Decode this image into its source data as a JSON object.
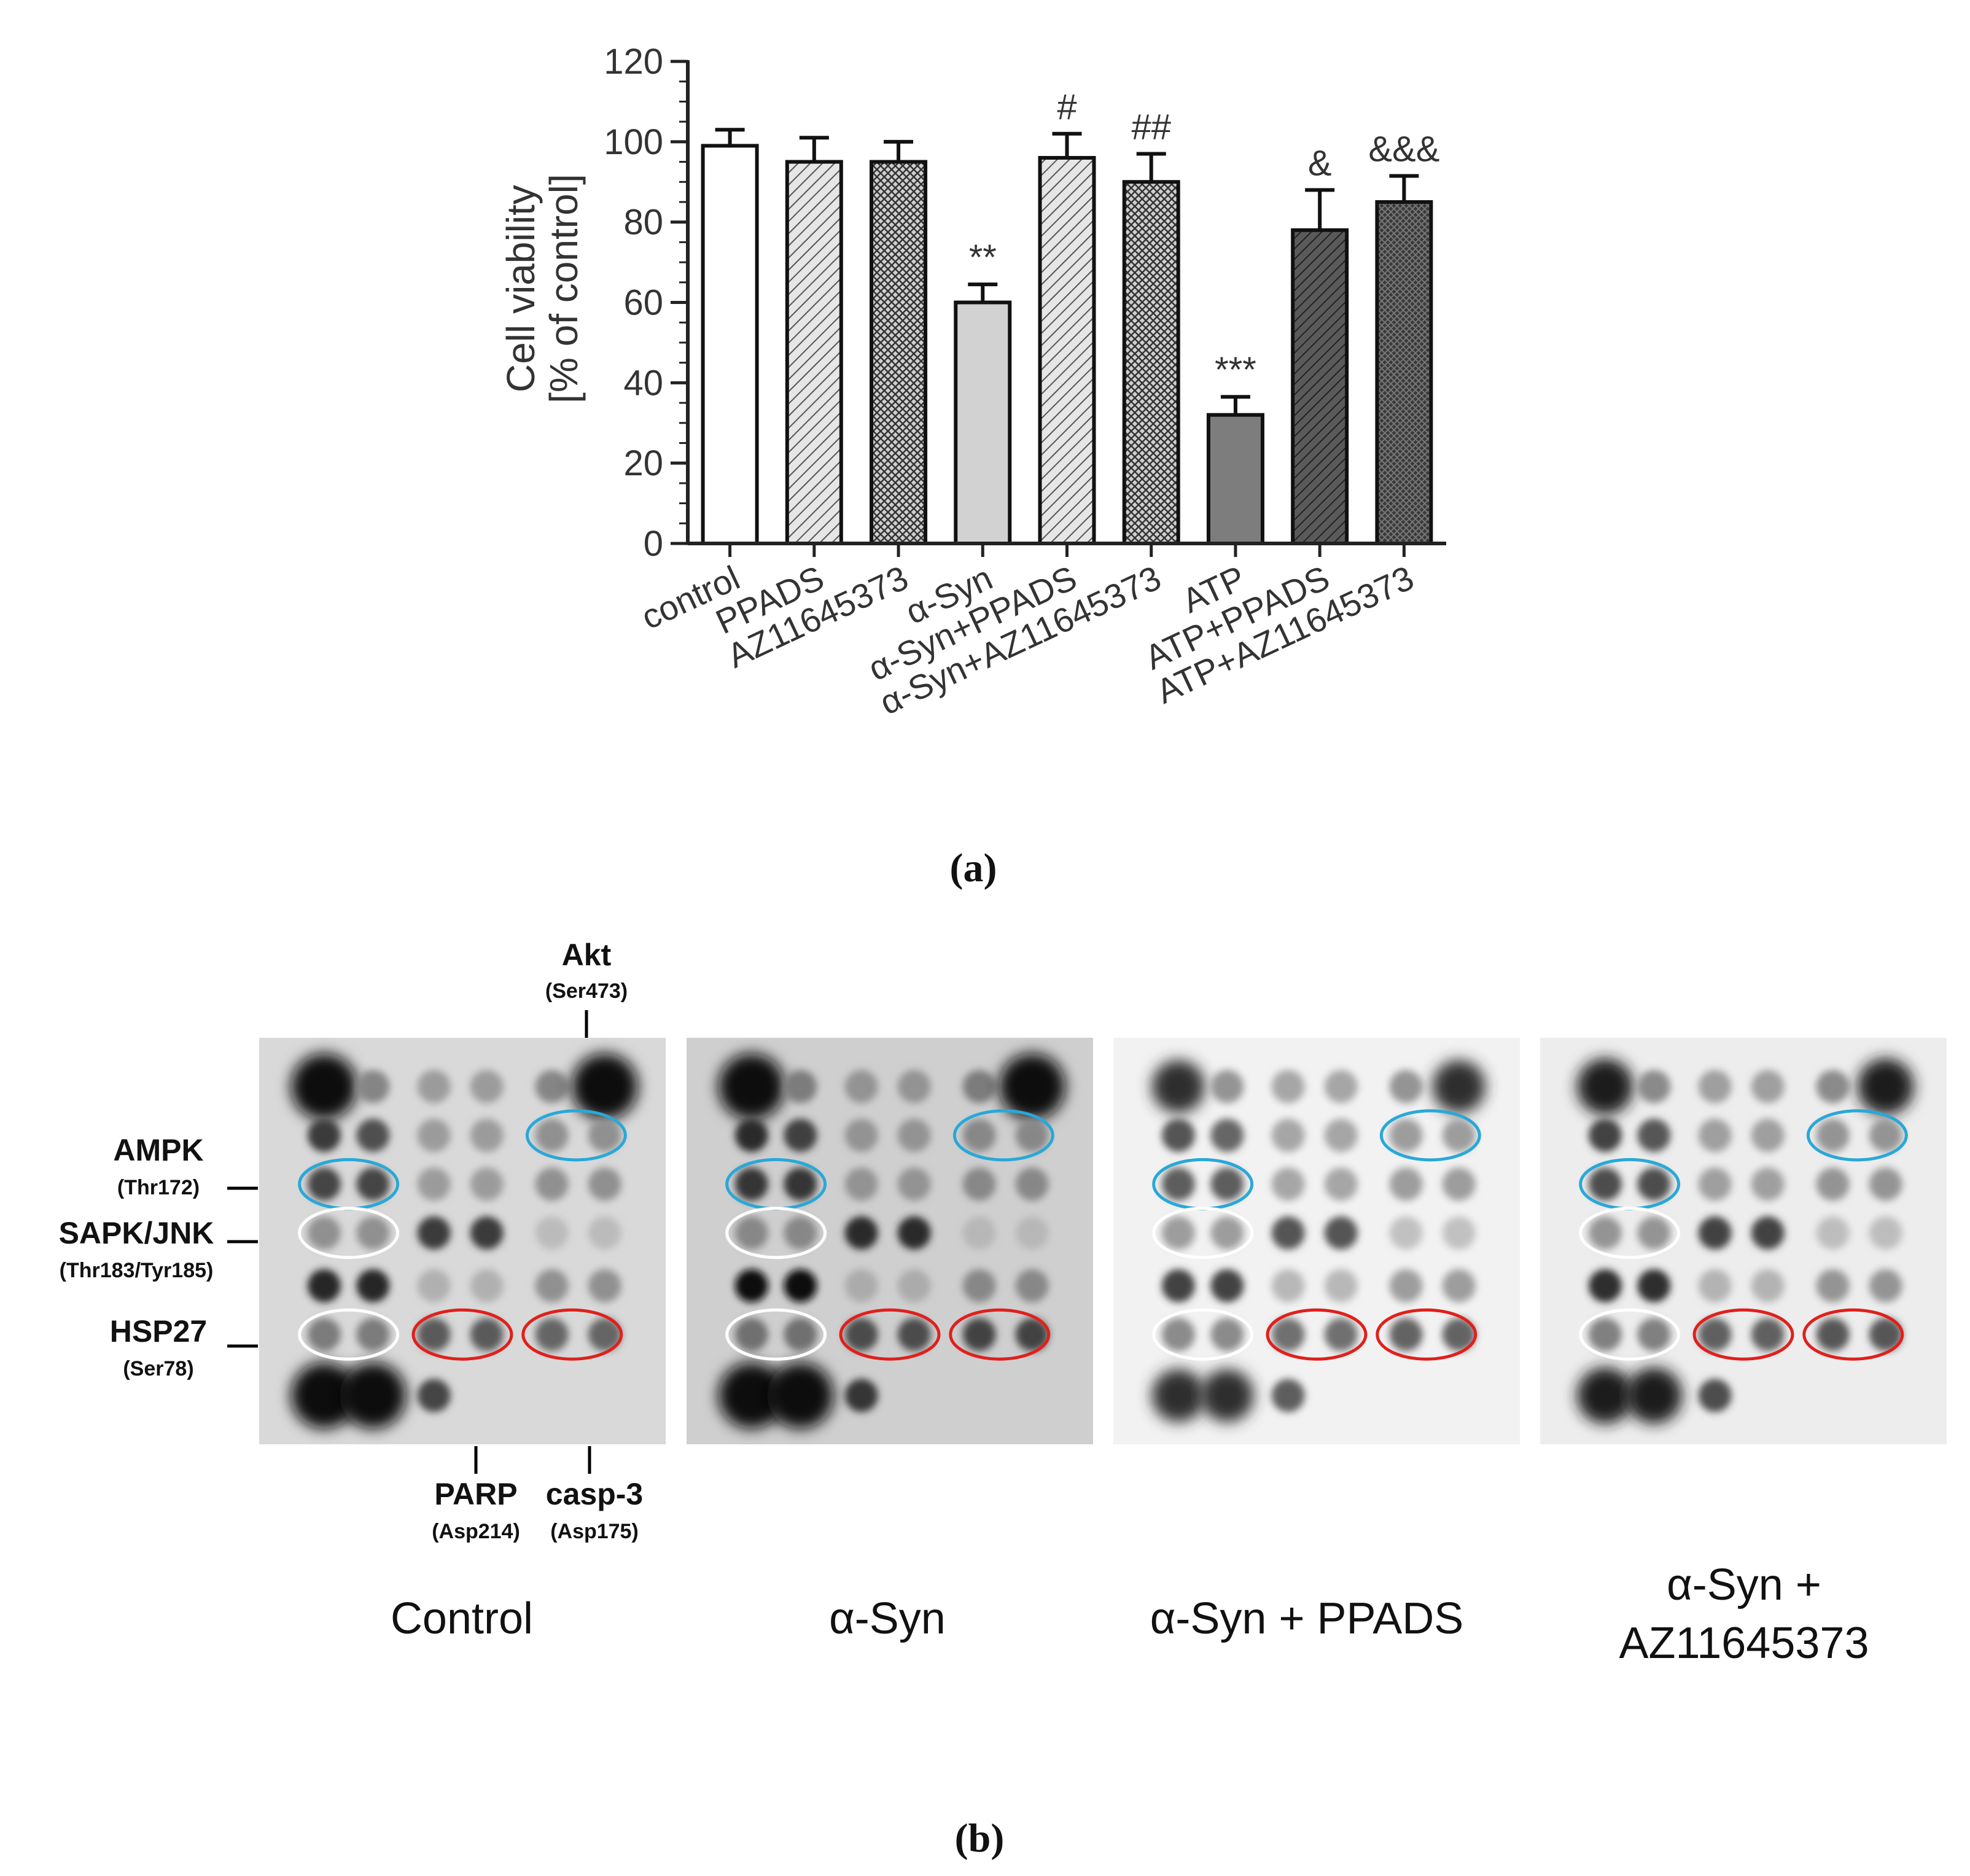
{
  "chart_data": {
    "type": "bar",
    "ylabel": [
      "Cell viability",
      "[% of control]"
    ],
    "ylim": [
      0,
      120
    ],
    "yticks": [
      0,
      20,
      40,
      60,
      80,
      100,
      120
    ],
    "minor_ticks_per_major": 4,
    "categories": [
      "control",
      "PPADS",
      "AZ11645373",
      "α-Syn",
      "α-Syn+PPADS",
      "α-Syn+AZ11645373",
      "ATP",
      "ATP+PPADS",
      "ATP+AZ11645373"
    ],
    "values": [
      99,
      95,
      95,
      60,
      96,
      90,
      32,
      78,
      85
    ],
    "errors": [
      4,
      6,
      5,
      4.5,
      6,
      7,
      4.5,
      10,
      6.5
    ],
    "annotations": [
      "",
      "",
      "",
      "**",
      "#",
      "##",
      "***",
      "&",
      "&&&"
    ],
    "bar_fills": [
      "white",
      "hatch-light",
      "crosshatch",
      "light-gray",
      "hatch-light",
      "crosshatch",
      "dark-gray",
      "hatch-dark",
      "crosshatch-dark"
    ],
    "panel_label": "(a)"
  },
  "blots": {
    "panel_label": "(b)",
    "conditions": [
      {
        "label": "Control"
      },
      {
        "label": "α-Syn"
      },
      {
        "label": "α-Syn + PPADS"
      },
      {
        "label_line1": "α-Syn +",
        "label_line2": "AZ11645373"
      }
    ],
    "left_labels": [
      {
        "name": "AMPK",
        "site": "(Thr172)"
      },
      {
        "name": "SAPK/JNK",
        "site": "(Thr183/Tyr185)"
      },
      {
        "name": "HSP27",
        "site": "(Ser78)"
      }
    ],
    "top_label": {
      "name": "Akt",
      "site": "(Ser473)"
    },
    "bottom_labels": [
      {
        "name": "PARP",
        "site": "(Asp214)"
      },
      {
        "name": "casp-3",
        "site": "(Asp175)"
      }
    ],
    "colors": {
      "blue": "#29a8d8",
      "red": "#e0201c",
      "white": "#ffffff"
    }
  }
}
